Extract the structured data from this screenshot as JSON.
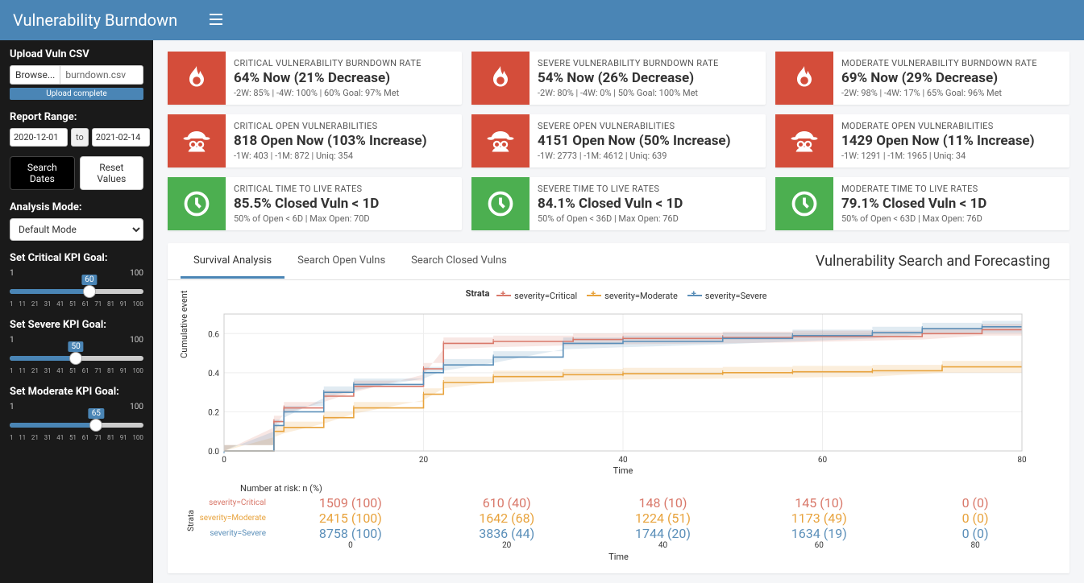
{
  "header": {
    "title": "Vulnerability Burndown"
  },
  "sidebar": {
    "upload_label": "Upload Vuln CSV",
    "browse_btn": "Browse...",
    "file_name": "burndown.csv",
    "upload_status": "Upload complete",
    "range_label": "Report Range:",
    "date_from": "2020-12-01",
    "date_to": "2021-02-14",
    "date_sep": "to",
    "search_btn": "Search Dates",
    "reset_btn": "Reset Values",
    "mode_label": "Analysis Mode:",
    "mode_value": "Default Mode",
    "sliders": [
      {
        "label": "Set Critical KPI Goal:",
        "min": 1,
        "max": 100,
        "value": 60
      },
      {
        "label": "Set Severe KPI Goal:",
        "min": 1,
        "max": 100,
        "value": 50
      },
      {
        "label": "Set Moderate KPI Goal:",
        "min": 1,
        "max": 100,
        "value": 65
      }
    ],
    "tick_labels": [
      "1",
      "11",
      "21",
      "31",
      "41",
      "51",
      "61",
      "71",
      "81",
      "91",
      "100"
    ]
  },
  "cards": [
    {
      "color": "red",
      "icon": "fire",
      "title": "CRITICAL VULNERABILITY BURNDOWN RATE",
      "main": "64% Now (21% Decrease)",
      "sub": "-2W: 85% | -4W: 100% | 60% Goal: 97% Met"
    },
    {
      "color": "red",
      "icon": "fire",
      "title": "SEVERE VULNERABILITY BURNDOWN RATE",
      "main": "54% Now (26% Decrease)",
      "sub": "-2W: 80% | -4W: 0% | 50% Goal: 100% Met"
    },
    {
      "color": "red",
      "icon": "fire",
      "title": "MODERATE VULNERABILITY BURNDOWN RATE",
      "main": "69% Now (29% Decrease)",
      "sub": "-2W: 98% | -4W: 17% | 65% Goal: 96% Met"
    },
    {
      "color": "red",
      "icon": "spy",
      "title": "CRITICAL OPEN VULNERABILITIES",
      "main": "818 Open Now (103% Increase)",
      "sub": "-1W: 403 | -1M: 872 | Uniq: 354"
    },
    {
      "color": "red",
      "icon": "spy",
      "title": "SEVERE OPEN VULNERABILITIES",
      "main": "4151 Open Now (50% Increase)",
      "sub": "-1W: 2773 | -1M: 4612 | Uniq: 639"
    },
    {
      "color": "red",
      "icon": "spy",
      "title": "MODERATE OPEN VULNERABILITIES",
      "main": "1429 Open Now (11% Increase)",
      "sub": "-1W: 1291 | -1M: 1965 | Uniq: 34"
    },
    {
      "color": "green",
      "icon": "clock",
      "title": "CRITICAL TIME TO LIVE RATES",
      "main": "85.5% Closed Vuln < 1D",
      "sub": "50% of Open < 6D | Max Open: 70D"
    },
    {
      "color": "green",
      "icon": "clock",
      "title": "SEVERE TIME TO LIVE RATES",
      "main": "84.1% Closed Vuln < 1D",
      "sub": "50% of Open < 36D | Max Open: 76D"
    },
    {
      "color": "green",
      "icon": "clock",
      "title": "MODERATE TIME TO LIVE RATES",
      "main": "79.1% Closed Vuln < 1D",
      "sub": "50% of Open < 63D | Max Open: 76D"
    }
  ],
  "tabs": [
    "Survival Analysis",
    "Search Open Vulns",
    "Search Closed Vulns"
  ],
  "active_tab": 0,
  "panel_title": "Vulnerability Search and Forecasting",
  "chart": {
    "legend_title": "Strata",
    "series": [
      {
        "name": "severity=Critical",
        "color": "#d9786a"
      },
      {
        "name": "severity=Moderate",
        "color": "#e8a33d"
      },
      {
        "name": "severity=Severe",
        "color": "#5b8fb9"
      }
    ],
    "ylabel": "Cumulative event",
    "xlabel": "Time",
    "xticks": [
      0,
      20,
      40,
      60,
      80
    ],
    "yticks": [
      0.0,
      0.2,
      0.4,
      0.6
    ],
    "xlim": [
      0,
      80
    ],
    "ylim": [
      0,
      0.7
    ],
    "background": "#ffffff",
    "grid_color": "#eeeeee",
    "critical_line": [
      [
        0,
        0
      ],
      [
        5,
        0.15
      ],
      [
        6,
        0.22
      ],
      [
        10,
        0.28
      ],
      [
        13,
        0.33
      ],
      [
        20,
        0.42
      ],
      [
        22,
        0.55
      ],
      [
        27,
        0.56
      ],
      [
        35,
        0.57
      ],
      [
        40,
        0.575
      ],
      [
        50,
        0.58
      ],
      [
        57,
        0.585
      ],
      [
        70,
        0.6
      ],
      [
        76,
        0.62
      ],
      [
        80,
        0.62
      ]
    ],
    "moderate_line": [
      [
        0,
        0
      ],
      [
        5,
        0.1
      ],
      [
        6,
        0.12
      ],
      [
        10,
        0.17
      ],
      [
        13,
        0.22
      ],
      [
        20,
        0.29
      ],
      [
        22,
        0.35
      ],
      [
        27,
        0.38
      ],
      [
        34,
        0.39
      ],
      [
        40,
        0.395
      ],
      [
        50,
        0.4
      ],
      [
        57,
        0.405
      ],
      [
        65,
        0.41
      ],
      [
        72,
        0.43
      ],
      [
        80,
        0.43
      ]
    ],
    "severe_line": [
      [
        0,
        0
      ],
      [
        5,
        0.13
      ],
      [
        6,
        0.2
      ],
      [
        10,
        0.3
      ],
      [
        13,
        0.34
      ],
      [
        20,
        0.4
      ],
      [
        22,
        0.44
      ],
      [
        27,
        0.48
      ],
      [
        34,
        0.55
      ],
      [
        40,
        0.56
      ],
      [
        50,
        0.575
      ],
      [
        57,
        0.59
      ],
      [
        65,
        0.605
      ],
      [
        70,
        0.625
      ],
      [
        76,
        0.635
      ],
      [
        80,
        0.635
      ]
    ],
    "band_alpha": 0.18
  },
  "risk_table": {
    "title": "Number at risk: n (%)",
    "strata_label": "Strata",
    "xticks": [
      0,
      20,
      40,
      60,
      80
    ],
    "xlabel": "Time",
    "rows": [
      {
        "label": "severity=Critical",
        "color": "#d9786a",
        "values": [
          "1509 (100)",
          "610 (40)",
          "148 (10)",
          "145 (10)",
          "0 (0)"
        ]
      },
      {
        "label": "severity=Moderate",
        "color": "#e8a33d",
        "values": [
          "2415 (100)",
          "1642 (68)",
          "1224 (51)",
          "1173 (49)",
          "0 (0)"
        ]
      },
      {
        "label": "severity=Severe",
        "color": "#5b8fb9",
        "values": [
          "8758 (100)",
          "3836 (44)",
          "1744 (20)",
          "1634 (19)",
          "0 (0)"
        ]
      }
    ]
  }
}
